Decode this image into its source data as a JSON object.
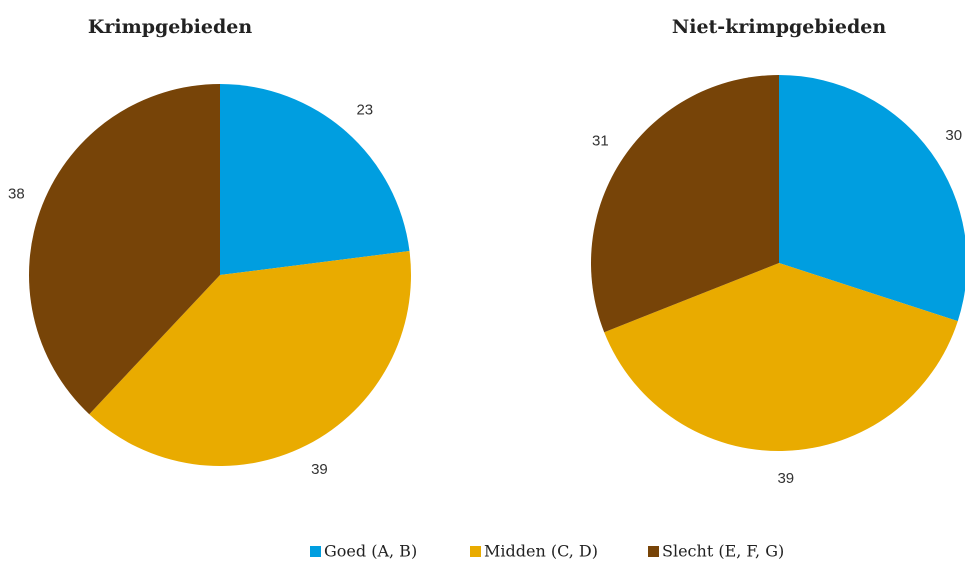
{
  "chart_data": [
    {
      "type": "pie",
      "title": "Krimpgebieden",
      "categories": [
        "Goed (A, B)",
        "Midden (C, D)",
        "Slecht (E, F, G)"
      ],
      "values": [
        23,
        39,
        38
      ],
      "colors": [
        "#009ee0",
        "#e9ab00",
        "#774408"
      ]
    },
    {
      "type": "pie",
      "title": "Niet-krimpgebieden",
      "categories": [
        "Goed (A, B)",
        "Midden (C, D)",
        "Slecht (E, F, G)"
      ],
      "values": [
        30,
        39,
        31
      ],
      "colors": [
        "#009ee0",
        "#e9ab00",
        "#774408"
      ]
    }
  ]
}
